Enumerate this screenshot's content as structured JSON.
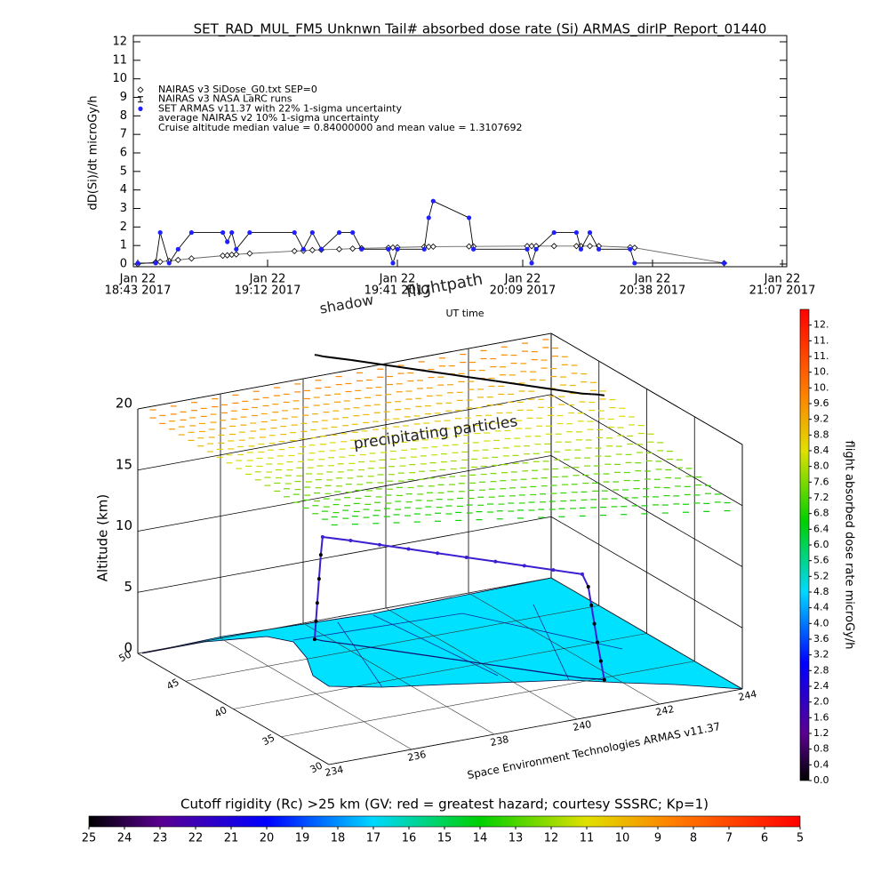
{
  "chart_data": [
    {
      "type": "line",
      "title": "SET_RAD_MUL_FM5 Unknwn Tail#  absorbed dose rate (Si) ARMAS_dirIP_Report_01440",
      "y_label": "dD(Si)/dt microGy/h",
      "x_label": "UT time",
      "annotation": "Cruise altitude median value = 0.84000000 and mean value = 1.3107692",
      "x": [
        "2017-01-22 18:43",
        "2017-01-22 18:47",
        "2017-01-22 18:48",
        "2017-01-22 18:50",
        "2017-01-22 18:52",
        "2017-01-22 18:55",
        "2017-01-22 19:02",
        "2017-01-22 19:03",
        "2017-01-22 19:04",
        "2017-01-22 19:05",
        "2017-01-22 19:08",
        "2017-01-22 19:18",
        "2017-01-22 19:20",
        "2017-01-22 19:22",
        "2017-01-22 19:24",
        "2017-01-22 19:28",
        "2017-01-22 19:31",
        "2017-01-22 19:33",
        "2017-01-22 19:39",
        "2017-01-22 19:40",
        "2017-01-22 19:41",
        "2017-01-22 19:47",
        "2017-01-22 19:48",
        "2017-01-22 19:49",
        "2017-01-22 19:57",
        "2017-01-22 19:58",
        "2017-01-22 20:10",
        "2017-01-22 20:11",
        "2017-01-22 20:12",
        "2017-01-22 20:16",
        "2017-01-22 20:21",
        "2017-01-22 20:22",
        "2017-01-22 20:24",
        "2017-01-22 20:26",
        "2017-01-22 20:33",
        "2017-01-22 20:34",
        "2017-01-22 20:54"
      ],
      "xlim": [
        "2017-01-22 18:43",
        "2017-01-22 21:07"
      ],
      "xticks": [
        {
          "value": "2017-01-22 18:43",
          "label": "Jan 22",
          "sublabel": "18:43 2017"
        },
        {
          "value": "2017-01-22 19:12",
          "label": "Jan 22",
          "sublabel": "19:12 2017"
        },
        {
          "value": "2017-01-22 19:41",
          "label": "Jan 22",
          "sublabel": "19:41 2017"
        },
        {
          "value": "2017-01-22 20:09",
          "label": "Jan 22",
          "sublabel": "20:09 2017"
        },
        {
          "value": "2017-01-22 20:38",
          "label": "Jan 22",
          "sublabel": "20:38 2017"
        },
        {
          "value": "2017-01-22 21:07",
          "label": "Jan 22",
          "sublabel": "21:07 2017"
        }
      ],
      "ylim": [
        0,
        12
      ],
      "yticks": [
        0,
        1,
        2,
        3,
        4,
        5,
        6,
        7,
        8,
        9,
        10,
        11,
        12
      ],
      "series": [
        {
          "name": "NAIRAS v3 SiDose_G0.txt SEP=0",
          "marker": "diamond",
          "color": "#000000",
          "values": [
            0,
            0.1,
            0.12,
            0.17,
            0.22,
            0.3,
            0.45,
            0.47,
            0.5,
            0.52,
            0.57,
            0.7,
            0.72,
            0.75,
            0.77,
            0.8,
            0.83,
            0.85,
            0.88,
            0.89,
            0.9,
            0.93,
            0.93,
            0.94,
            0.95,
            0.95,
            0.97,
            0.97,
            0.97,
            0.97,
            0.97,
            0.97,
            0.97,
            0.97,
            0.9,
            0.88,
            0.05
          ]
        },
        {
          "name": "NAIRAS v3 NASA LaRC runs",
          "marker": "bowtie",
          "color": "#000000"
        },
        {
          "name": "SET ARMAS v11.37 with 22% 1-sigma uncertainty",
          "marker": "circle",
          "color": "#1f1fff",
          "values": [
            0.05,
            0.05,
            1.7,
            0.05,
            0.8,
            1.7,
            1.7,
            1.2,
            1.7,
            0.8,
            1.7,
            1.7,
            0.8,
            1.7,
            0.8,
            1.7,
            1.7,
            0.8,
            0.8,
            0.05,
            0.8,
            0.8,
            2.5,
            3.4,
            2.5,
            0.8,
            0.8,
            0.05,
            0.8,
            1.7,
            1.7,
            0.8,
            1.7,
            0.8,
            0.8,
            0.05,
            0.05
          ]
        },
        {
          "name": "average NAIRAS v2 10% 1-sigma uncertainty",
          "marker": "none",
          "color": "#000000"
        }
      ]
    },
    {
      "type": "scatter3d",
      "z_label": "Altitude (km)",
      "annotations": [
        "shadow",
        "flightpath",
        "precipitating particles"
      ],
      "credit": "Space Environment Technologies ARMAS v11.37",
      "xlim": [
        234,
        244
      ],
      "xticks": [
        234,
        236,
        238,
        240,
        242,
        244
      ],
      "ylim": [
        30,
        50
      ],
      "yticks": [
        30,
        35,
        40,
        45,
        50
      ],
      "zlim": [
        0,
        20
      ],
      "zticks": [
        0,
        5,
        10,
        15,
        20
      ],
      "flightpath": {
        "color": "#3c1fd0",
        "lon": [
          237.7,
          237.72,
          237.74,
          237.76,
          237.78,
          237.8,
          238.2,
          238.6,
          239.0,
          239.4,
          239.8,
          240.2,
          240.6,
          241.0,
          241.4,
          241.5,
          241.55,
          241.6,
          241.65,
          241.7,
          241.75
        ],
        "lat": [
          47.5,
          47.45,
          47.4,
          47.3,
          47.2,
          47.1,
          45.9,
          44.6,
          43.3,
          42.0,
          40.7,
          39.4,
          38.1,
          36.8,
          35.5,
          35.3,
          35.2,
          35.1,
          35.0,
          34.85,
          34.7
        ],
        "alt": [
          0,
          1.5,
          3,
          5,
          7,
          8.5,
          8.5,
          8.5,
          8.5,
          8.5,
          8.5,
          8.5,
          8.5,
          8.5,
          8.5,
          7.5,
          6,
          4.5,
          3,
          1.5,
          0
        ]
      }
    },
    {
      "type": "colorbar",
      "orientation": "vertical",
      "title": "flight absorbed dose rate microGy/h",
      "lim": [
        0,
        12
      ],
      "ticks": [
        {
          "value": 0,
          "label": "0.0"
        },
        0.4,
        0.8,
        1.2,
        1.6,
        {
          "value": 2,
          "label": "2.0"
        },
        2.4,
        2.8,
        3.2,
        3.6,
        {
          "value": 4,
          "label": "4.0"
        },
        4.4,
        4.8,
        5.2,
        5.6,
        {
          "value": 6,
          "label": "6.0"
        },
        6.4,
        6.8,
        7.2,
        7.6,
        {
          "value": 8,
          "label": "8.0"
        },
        8.4,
        8.8,
        9.2,
        9.6,
        {
          "value": 10,
          "label": "10."
        },
        {
          "value": 10.4,
          "label": "10."
        },
        {
          "value": 10.8,
          "label": "11."
        },
        {
          "value": 11.2,
          "label": "11."
        },
        {
          "value": 11.6,
          "label": "12."
        }
      ]
    },
    {
      "type": "colorbar",
      "orientation": "horizontal",
      "title": "Cutoff rigidity (Rc) >25 km (GV: red = greatest hazard; courtesy SSSRC; Kp=1)",
      "lim": [
        25,
        5
      ],
      "ticks": [
        25,
        24,
        23,
        22,
        21,
        20,
        19,
        18,
        17,
        16,
        15,
        14,
        13,
        12,
        11,
        10,
        9,
        8,
        7,
        6,
        5
      ]
    }
  ]
}
